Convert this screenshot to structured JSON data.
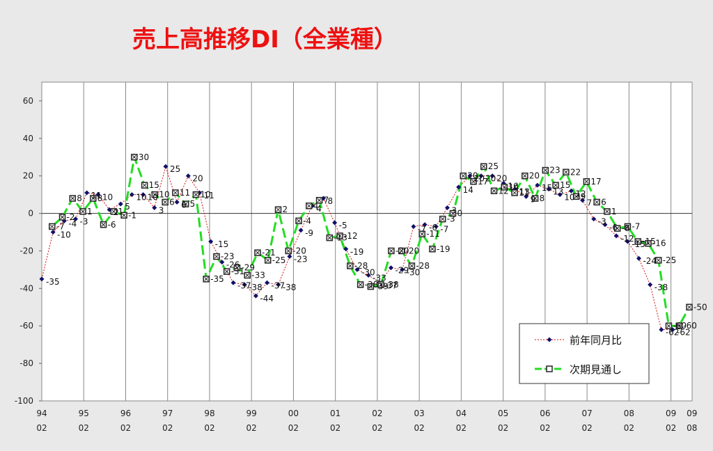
{
  "chart_data": {
    "type": "line",
    "title": "売上高推移DI（全業種）",
    "xlabel": "",
    "ylabel": "",
    "ylim": [
      -100,
      70
    ],
    "yticks": [
      60,
      40,
      20,
      0,
      -20,
      -40,
      -60,
      -80,
      -100
    ],
    "grid": "vertical lines at each year",
    "legend_position": "bottom-right",
    "x_ticks": [
      {
        "year": "94",
        "month": "02"
      },
      {
        "year": "95",
        "month": "02"
      },
      {
        "year": "96",
        "month": "02"
      },
      {
        "year": "97",
        "month": "02"
      },
      {
        "year": "98",
        "month": "02"
      },
      {
        "year": "99",
        "month": "02"
      },
      {
        "year": "00",
        "month": "02"
      },
      {
        "year": "01",
        "month": "02"
      },
      {
        "year": "02",
        "month": "02"
      },
      {
        "year": "03",
        "month": "02"
      },
      {
        "year": "04",
        "month": "02"
      },
      {
        "year": "05",
        "month": "02"
      },
      {
        "year": "06",
        "month": "02"
      },
      {
        "year": "07",
        "month": "02"
      },
      {
        "year": "08",
        "month": "02"
      },
      {
        "year": "09",
        "month": "02"
      },
      {
        "year": "09",
        "month": "08"
      }
    ],
    "series": [
      {
        "name": "前年同月比",
        "color": "#d01010",
        "marker_color": "#10106a",
        "values": [
          -35,
          -10,
          -4,
          -3,
          11,
          10,
          2,
          5,
          10,
          10,
          3,
          25,
          6,
          20,
          11,
          -15,
          -26,
          -37,
          -38,
          -44,
          -37,
          -38,
          -23,
          -9,
          4,
          8,
          -5,
          -19,
          -30,
          -33,
          -37,
          -29,
          -30,
          -7,
          -6,
          -7,
          3,
          14,
          20,
          20,
          20,
          16,
          13,
          9,
          15,
          13,
          10,
          12,
          7,
          -3,
          -6,
          -12,
          -15,
          -24,
          -38,
          -62,
          -62
        ]
      },
      {
        "name": "次期見通し",
        "color": "#22dd22",
        "marker_color": "#222222",
        "values": [
          null,
          -7,
          -2,
          8,
          1,
          8,
          -6,
          1,
          -1,
          30,
          15,
          10,
          6,
          11,
          5,
          10,
          -35,
          -23,
          -31,
          -29,
          -33,
          -21,
          -25,
          2,
          -20,
          -4,
          4,
          7,
          -13,
          -12,
          -28,
          -38,
          -39,
          -38,
          -20,
          -20,
          -28,
          -11,
          -19,
          -3,
          0,
          20,
          17,
          25,
          12,
          14,
          11,
          20,
          8,
          23,
          15,
          22,
          9,
          17,
          6,
          1,
          -8,
          -7,
          -15,
          -16,
          -25,
          -60,
          -60,
          -50
        ]
      }
    ],
    "data_labels": {
      "前年同月比": [
        "-35",
        "-10",
        "-4",
        "-3",
        "11",
        "10",
        "2",
        "5",
        "10",
        "10",
        "3",
        "25",
        "6",
        "20",
        "11",
        "-15",
        "-26",
        "-37",
        "-38",
        "-44",
        "-37",
        "-38",
        "-23",
        "-9",
        "4",
        "8",
        "-5",
        "-19",
        "-30",
        "-33",
        "-37",
        "-29",
        "-30",
        "-7",
        "-6",
        "-7",
        "3",
        "14",
        "20",
        "20",
        "20",
        "16",
        "13",
        "9",
        "15",
        "13",
        "10",
        "12",
        "7",
        "-3",
        "-6",
        "-12",
        "-15",
        "-24",
        "-38",
        "-62",
        "-62"
      ],
      "次期見通し": [
        "",
        "-7",
        "-2",
        "8",
        "1",
        "8",
        "-6",
        "1",
        "-1",
        "30",
        "15",
        "10",
        "6",
        "11",
        "5",
        "10",
        "-35",
        "-23",
        "-31",
        "-29",
        "-33",
        "-21",
        "-25",
        "2",
        "-20",
        "-4",
        "4",
        "7",
        "-13",
        "-12",
        "-28",
        "-38",
        "-39",
        "-38",
        "-20",
        "-20",
        "-28",
        "-11",
        "-19",
        "-3",
        "0",
        "20",
        "17",
        "25",
        "12",
        "14",
        "11",
        "20",
        "8",
        "23",
        "15",
        "22",
        "9",
        "17",
        "6",
        "1",
        "-8",
        "-7",
        "-15",
        "-16",
        "-25",
        "-60",
        "-60",
        "-50"
      ]
    }
  }
}
